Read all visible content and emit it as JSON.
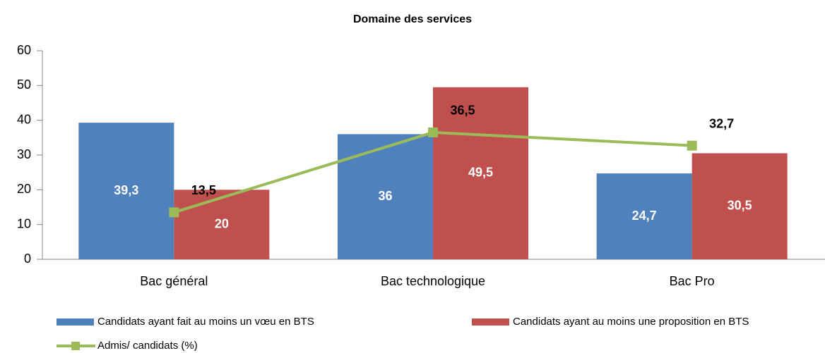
{
  "chart_data": {
    "type": "bar",
    "title": "Domaine des services",
    "categories": [
      "Bac général",
      "Bac technologique",
      "Bac Pro"
    ],
    "ylim": [
      0,
      60
    ],
    "yticks": [
      0,
      10,
      20,
      30,
      40,
      50,
      60
    ],
    "series": [
      {
        "name": "Candidats ayant fait au moins un vœu en BTS",
        "type": "bar",
        "color": "#4f81bd",
        "values": [
          39.3,
          36,
          24.7
        ],
        "value_labels": [
          "39,3",
          "36",
          "24,7"
        ]
      },
      {
        "name": "Candidats ayant au moins une proposition en BTS",
        "type": "bar",
        "color": "#c0504d",
        "values": [
          20,
          49.5,
          30.5
        ],
        "value_labels": [
          "20",
          "49,5",
          "30,5"
        ]
      },
      {
        "name": "Admis/ candidats (%)",
        "type": "line",
        "color": "#9bbb59",
        "values": [
          13.5,
          36.5,
          32.7
        ],
        "value_labels": [
          "13,5",
          "36,5",
          "32,7"
        ]
      }
    ]
  }
}
